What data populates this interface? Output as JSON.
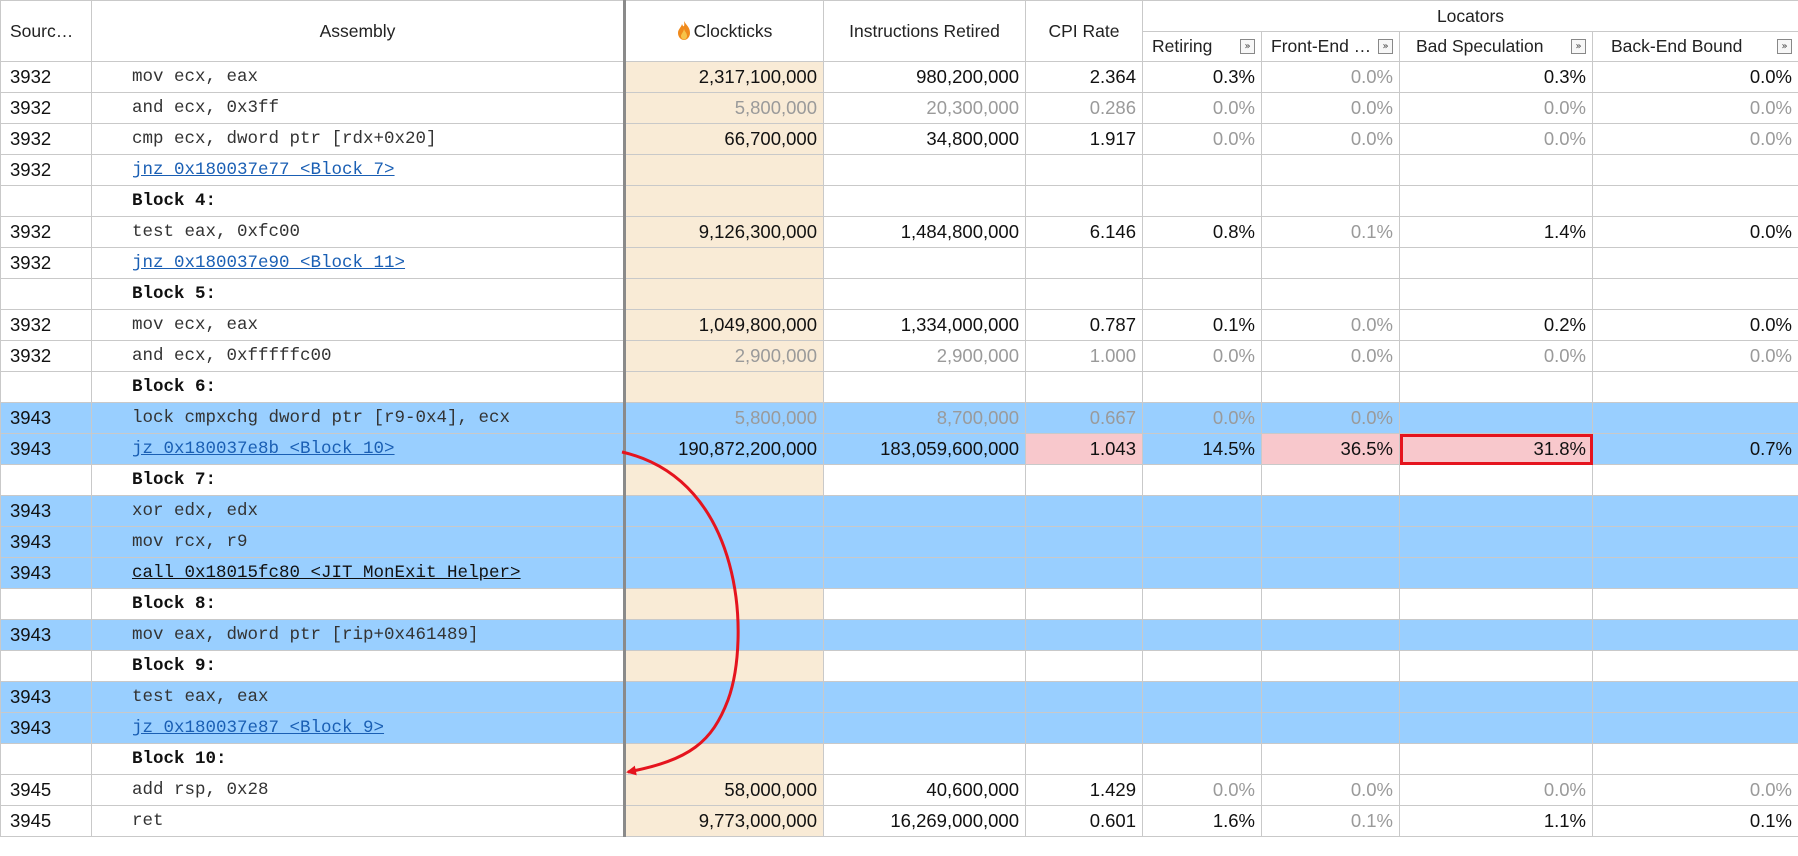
{
  "header": {
    "source": "Sourc…",
    "assembly": "Assembly",
    "clockticks": "Clockticks",
    "instructions_retired": "Instructions Retired",
    "cpi_rate": "CPI Rate",
    "locators": "Locators",
    "retiring": "Retiring",
    "front_end": "Front-End …",
    "bad_speculation": "Bad Speculation",
    "back_end_bound": "Back-End Bound",
    "expander_glyph": "»"
  },
  "rows": [
    {
      "src": "3932",
      "asm": "mov ecx, eax",
      "clk": "2,317,100,000",
      "inst": "980,200,000",
      "cpi": "2.364",
      "ret": "0.3%",
      "fe": "0.0%",
      "bs": "0.3%",
      "be": "0.0%"
    },
    {
      "src": "3932",
      "asm": "and ecx, 0x3ff",
      "clk": "5,800,000",
      "inst": "20,300,000",
      "cpi": "0.286",
      "ret": "0.0%",
      "fe": "0.0%",
      "bs": "0.0%",
      "be": "0.0%"
    },
    {
      "src": "3932",
      "asm": "cmp ecx, dword ptr [rdx+0x20]",
      "clk": "66,700,000",
      "inst": "34,800,000",
      "cpi": "1.917",
      "ret": "0.0%",
      "fe": "0.0%",
      "bs": "0.0%",
      "be": "0.0%"
    },
    {
      "src": "3932",
      "asm": "jnz 0x180037e77 <Block 7>",
      "clk": "",
      "inst": "",
      "cpi": "",
      "ret": "",
      "fe": "",
      "bs": "",
      "be": ""
    },
    {
      "src": "",
      "asm": "Block 4:",
      "clk": "",
      "inst": "",
      "cpi": "",
      "ret": "",
      "fe": "",
      "bs": "",
      "be": ""
    },
    {
      "src": "3932",
      "asm": "test eax, 0xfc00",
      "clk": "9,126,300,000",
      "inst": "1,484,800,000",
      "cpi": "6.146",
      "ret": "0.8%",
      "fe": "0.1%",
      "bs": "1.4%",
      "be": "0.0%"
    },
    {
      "src": "3932",
      "asm": "jnz 0x180037e90 <Block 11>",
      "clk": "",
      "inst": "",
      "cpi": "",
      "ret": "",
      "fe": "",
      "bs": "",
      "be": ""
    },
    {
      "src": "",
      "asm": "Block 5:",
      "clk": "",
      "inst": "",
      "cpi": "",
      "ret": "",
      "fe": "",
      "bs": "",
      "be": ""
    },
    {
      "src": "3932",
      "asm": "mov ecx, eax",
      "clk": "1,049,800,000",
      "inst": "1,334,000,000",
      "cpi": "0.787",
      "ret": "0.1%",
      "fe": "0.0%",
      "bs": "0.2%",
      "be": "0.0%"
    },
    {
      "src": "3932",
      "asm": "and ecx, 0xfffffc00",
      "clk": "2,900,000",
      "inst": "2,900,000",
      "cpi": "1.000",
      "ret": "0.0%",
      "fe": "0.0%",
      "bs": "0.0%",
      "be": "0.0%"
    },
    {
      "src": "",
      "asm": "Block 6:",
      "clk": "",
      "inst": "",
      "cpi": "",
      "ret": "",
      "fe": "",
      "bs": "",
      "be": ""
    },
    {
      "src": "3943",
      "asm": "lock cmpxchg dword ptr [r9-0x4], ecx",
      "clk": "5,800,000",
      "inst": "8,700,000",
      "cpi": "0.667",
      "ret": "0.0%",
      "fe": "0.0%",
      "bs": "",
      "be": ""
    },
    {
      "src": "3943",
      "asm": "jz 0x180037e8b <Block 10>",
      "clk": "190,872,200,000",
      "inst": "183,059,600,000",
      "cpi": "1.043",
      "ret": "14.5%",
      "fe": "36.5%",
      "bs": "31.8%",
      "be": "0.7%"
    },
    {
      "src": "",
      "asm": "Block 7:",
      "clk": "",
      "inst": "",
      "cpi": "",
      "ret": "",
      "fe": "",
      "bs": "",
      "be": ""
    },
    {
      "src": "3943",
      "asm": "xor edx, edx",
      "clk": "",
      "inst": "",
      "cpi": "",
      "ret": "",
      "fe": "",
      "bs": "",
      "be": ""
    },
    {
      "src": "3943",
      "asm": "mov rcx, r9",
      "clk": "",
      "inst": "",
      "cpi": "",
      "ret": "",
      "fe": "",
      "bs": "",
      "be": ""
    },
    {
      "src": "3943",
      "asm": "call 0x18015fc80 <JIT_MonExit_Helper>",
      "clk": "",
      "inst": "",
      "cpi": "",
      "ret": "",
      "fe": "",
      "bs": "",
      "be": ""
    },
    {
      "src": "",
      "asm": "Block 8:",
      "clk": "",
      "inst": "",
      "cpi": "",
      "ret": "",
      "fe": "",
      "bs": "",
      "be": ""
    },
    {
      "src": "3943",
      "asm": "mov eax, dword ptr [rip+0x461489]",
      "clk": "",
      "inst": "",
      "cpi": "",
      "ret": "",
      "fe": "",
      "bs": "",
      "be": ""
    },
    {
      "src": "",
      "asm": "Block 9:",
      "clk": "",
      "inst": "",
      "cpi": "",
      "ret": "",
      "fe": "",
      "bs": "",
      "be": ""
    },
    {
      "src": "3943",
      "asm": "test eax, eax",
      "clk": "",
      "inst": "",
      "cpi": "",
      "ret": "",
      "fe": "",
      "bs": "",
      "be": ""
    },
    {
      "src": "3943",
      "asm": "jz 0x180037e87 <Block 9>",
      "clk": "",
      "inst": "",
      "cpi": "",
      "ret": "",
      "fe": "",
      "bs": "",
      "be": ""
    },
    {
      "src": "",
      "asm": "Block 10:",
      "clk": "",
      "inst": "",
      "cpi": "",
      "ret": "",
      "fe": "",
      "bs": "",
      "be": ""
    },
    {
      "src": "3945",
      "asm": "add rsp, 0x28",
      "clk": "58,000,000",
      "inst": "40,600,000",
      "cpi": "1.429",
      "ret": "0.0%",
      "fe": "0.0%",
      "bs": "0.0%",
      "be": "0.0%"
    },
    {
      "src": "3945",
      "asm": "ret",
      "clk": "9,773,000,000",
      "inst": "16,269,000,000",
      "cpi": "0.601",
      "ret": "1.6%",
      "fe": "0.1%",
      "bs": "1.1%",
      "be": "0.1%"
    }
  ],
  "colors": {
    "selection": "#99cfff",
    "clockticks_column": "#f9ebd6",
    "hotspot": "#f8c8cc",
    "highlight_box": "#e5141e",
    "arrow": "#e5141e",
    "link": "#1a5fb4"
  },
  "icons": {
    "clockticks": "flame-icon",
    "expander": "expand-column-icon",
    "jump": "jump-arrow-icon"
  }
}
